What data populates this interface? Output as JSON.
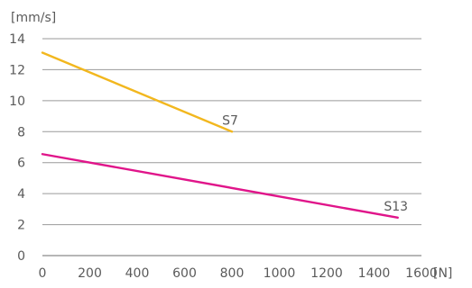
{
  "chart_data": {
    "type": "line",
    "ylabel": "[mm/s]",
    "xlabel": "[N]",
    "xlim": [
      0,
      1600
    ],
    "ylim": [
      0,
      14
    ],
    "x_ticks": [
      "0",
      "200",
      "400",
      "600",
      "800",
      "1000",
      "1200",
      "1400",
      "1600"
    ],
    "y_ticks": [
      "0",
      "2",
      "4",
      "6",
      "8",
      "10",
      "12",
      "14"
    ],
    "grid": "horizontal",
    "series": [
      {
        "name": "S7",
        "color": "#f2b71e",
        "points": [
          [
            0,
            13.1
          ],
          [
            800,
            8.0
          ]
        ]
      },
      {
        "name": "S13",
        "color": "#e0158a",
        "points": [
          [
            0,
            6.55
          ],
          [
            1500,
            2.45
          ]
        ]
      }
    ]
  }
}
